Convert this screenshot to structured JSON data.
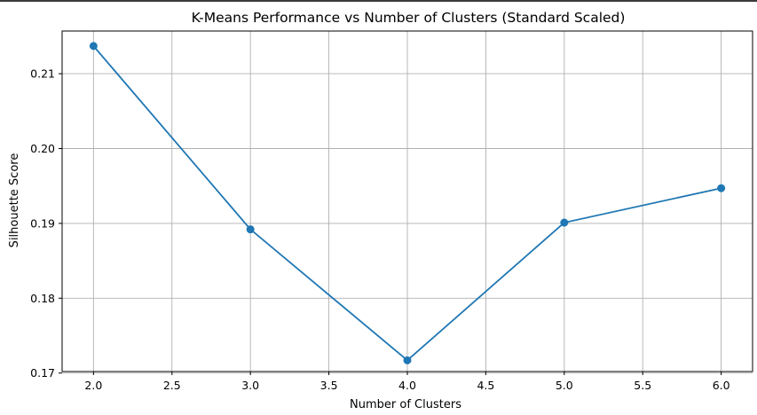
{
  "chart_data": {
    "type": "line",
    "title": "K-Means Performance vs Number of Clusters (Standard Scaled)",
    "xlabel": "Number of Clusters",
    "ylabel": "Silhouette Score",
    "x": [
      2,
      3,
      4,
      5,
      6
    ],
    "series": [
      {
        "values": [
          0.2137,
          0.1892,
          0.1717,
          0.1901,
          0.1947
        ]
      }
    ],
    "xlim": [
      1.8,
      6.2
    ],
    "ylim": [
      0.1702,
      0.2157
    ],
    "xticks": [
      2.0,
      2.5,
      3.0,
      3.5,
      4.0,
      4.5,
      5.0,
      5.5,
      6.0
    ],
    "yticks": [
      0.17,
      0.18,
      0.19,
      0.2,
      0.21
    ],
    "xtick_labels": [
      "2.0",
      "2.5",
      "3.0",
      "3.5",
      "4.0",
      "4.5",
      "5.0",
      "5.5",
      "6.0"
    ],
    "ytick_labels": [
      "0.17",
      "0.18",
      "0.19",
      "0.20",
      "0.21"
    ],
    "grid": true,
    "marker": "circle",
    "line_color": "#1f77b4",
    "grid_color": "#b0b0b0"
  }
}
